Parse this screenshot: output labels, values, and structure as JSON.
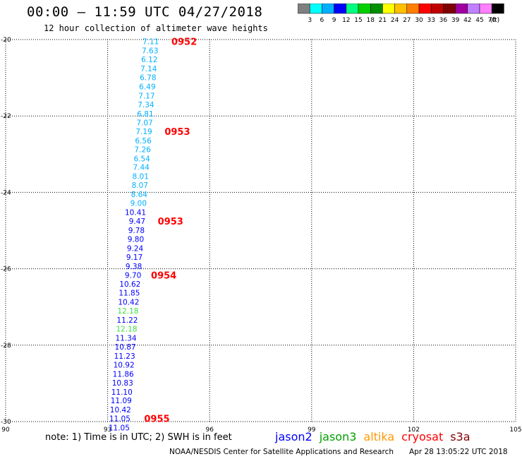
{
  "header": {
    "title": "00:00 – 11:59 UTC 04/27/2018",
    "subtitle": "12 hour collection of altimeter wave heights"
  },
  "colorbar": {
    "colors": [
      "#808080",
      "#00ffff",
      "#00b0ff",
      "#0000ff",
      "#00ff80",
      "#00d000",
      "#009000",
      "#ffff00",
      "#ffc000",
      "#ff8000",
      "#ff0000",
      "#c00000",
      "#800000",
      "#a000a0",
      "#c080ff",
      "#ff80ff",
      "#000000"
    ],
    "labels": [
      "3",
      "6",
      "9",
      "12",
      "15",
      "18",
      "21",
      "24",
      "27",
      "30",
      "33",
      "36",
      "39",
      "42",
      "45",
      "70"
    ],
    "unit": "(ft)"
  },
  "chart_data": {
    "type": "scatter",
    "xlim": [
      90,
      105
    ],
    "ylim": [
      -30,
      -20
    ],
    "xticks": [
      "90",
      "93",
      "96",
      "99",
      "102",
      "105"
    ],
    "yticks": [
      "-20",
      "-22",
      "-24",
      "-26",
      "-28",
      "-30"
    ],
    "grid": true,
    "points": [
      {
        "x": 94.51,
        "y": -20.05,
        "label": "7.11",
        "sat": "jason2",
        "color": "#00b0ff"
      },
      {
        "x": 94.49,
        "y": -20.29,
        "label": "7.63",
        "sat": "jason2",
        "color": "#00b0ff"
      },
      {
        "x": 94.47,
        "y": -20.52,
        "label": "6.12",
        "sat": "jason2",
        "color": "#00b0ff"
      },
      {
        "x": 94.45,
        "y": -20.76,
        "label": "7.14",
        "sat": "jason2",
        "color": "#00b0ff"
      },
      {
        "x": 94.43,
        "y": -20.99,
        "label": "6.78",
        "sat": "jason2",
        "color": "#00b0ff"
      },
      {
        "x": 94.41,
        "y": -21.23,
        "label": "6.49",
        "sat": "jason2",
        "color": "#00b0ff"
      },
      {
        "x": 94.39,
        "y": -21.47,
        "label": "7.17",
        "sat": "jason2",
        "color": "#00b0ff"
      },
      {
        "x": 94.37,
        "y": -21.7,
        "label": "7.34",
        "sat": "jason2",
        "color": "#00b0ff"
      },
      {
        "x": 94.35,
        "y": -21.94,
        "label": "6.81",
        "sat": "jason2",
        "color": "#00b0ff"
      },
      {
        "x": 94.33,
        "y": -22.17,
        "label": "7.07",
        "sat": "jason2",
        "color": "#00b0ff"
      },
      {
        "x": 94.31,
        "y": -22.4,
        "label": "7.19",
        "sat": "jason2",
        "color": "#00b0ff"
      },
      {
        "x": 94.29,
        "y": -22.64,
        "label": "6.56",
        "sat": "jason2",
        "color": "#00b0ff"
      },
      {
        "x": 94.27,
        "y": -22.87,
        "label": "7.26",
        "sat": "jason2",
        "color": "#00b0ff"
      },
      {
        "x": 94.25,
        "y": -23.11,
        "label": "6.54",
        "sat": "jason2",
        "color": "#00b0ff"
      },
      {
        "x": 94.23,
        "y": -23.34,
        "label": "7.44",
        "sat": "jason2",
        "color": "#00b0ff"
      },
      {
        "x": 94.21,
        "y": -23.58,
        "label": "8.01",
        "sat": "jason2",
        "color": "#00b0ff"
      },
      {
        "x": 94.19,
        "y": -23.81,
        "label": "8.07",
        "sat": "jason2",
        "color": "#00b0ff"
      },
      {
        "x": 94.17,
        "y": -24.05,
        "label": "8.64",
        "sat": "jason2",
        "color": "#00b0ff"
      },
      {
        "x": 94.15,
        "y": -24.28,
        "label": "9.00",
        "sat": "jason2",
        "color": "#00b0ff"
      },
      {
        "x": 94.13,
        "y": -24.52,
        "label": "10.41",
        "sat": "jason2",
        "color": "#0000ff"
      },
      {
        "x": 94.11,
        "y": -24.75,
        "label": "9.47",
        "sat": "jason2",
        "color": "#0000ff"
      },
      {
        "x": 94.09,
        "y": -24.99,
        "label": "9.78",
        "sat": "jason2",
        "color": "#0000ff"
      },
      {
        "x": 94.07,
        "y": -25.22,
        "label": "9.80",
        "sat": "jason2",
        "color": "#0000ff"
      },
      {
        "x": 94.05,
        "y": -25.46,
        "label": "9.24",
        "sat": "jason2",
        "color": "#0000ff"
      },
      {
        "x": 94.03,
        "y": -25.69,
        "label": "9.17",
        "sat": "jason2",
        "color": "#0000ff"
      },
      {
        "x": 94.01,
        "y": -25.93,
        "label": "9.38",
        "sat": "jason2",
        "color": "#0000ff"
      },
      {
        "x": 93.99,
        "y": -26.16,
        "label": "9.70",
        "sat": "jason2",
        "color": "#0000ff"
      },
      {
        "x": 93.97,
        "y": -26.4,
        "label": "10.62",
        "sat": "jason2",
        "color": "#0000ff"
      },
      {
        "x": 93.95,
        "y": -26.63,
        "label": "11.85",
        "sat": "jason2",
        "color": "#0000ff"
      },
      {
        "x": 93.93,
        "y": -26.87,
        "label": "10.42",
        "sat": "jason2",
        "color": "#0000ff"
      },
      {
        "x": 93.91,
        "y": -27.1,
        "label": "12.18",
        "sat": "jason2",
        "color": "#40e040"
      },
      {
        "x": 93.89,
        "y": -27.34,
        "label": "11.22",
        "sat": "jason2",
        "color": "#0000ff"
      },
      {
        "x": 93.87,
        "y": -27.57,
        "label": "12.18",
        "sat": "jason2",
        "color": "#40e040"
      },
      {
        "x": 93.85,
        "y": -27.81,
        "label": "11.34",
        "sat": "jason2",
        "color": "#0000ff"
      },
      {
        "x": 93.83,
        "y": -28.04,
        "label": "10.87",
        "sat": "jason2",
        "color": "#0000ff"
      },
      {
        "x": 93.81,
        "y": -28.28,
        "label": "11.23",
        "sat": "jason2",
        "color": "#0000ff"
      },
      {
        "x": 93.79,
        "y": -28.51,
        "label": "10.92",
        "sat": "jason2",
        "color": "#0000ff"
      },
      {
        "x": 93.77,
        "y": -28.75,
        "label": "11.86",
        "sat": "jason2",
        "color": "#0000ff"
      },
      {
        "x": 93.75,
        "y": -28.98,
        "label": "10.83",
        "sat": "jason2",
        "color": "#0000ff"
      },
      {
        "x": 93.73,
        "y": -29.22,
        "label": "11.10",
        "sat": "jason2",
        "color": "#0000ff"
      },
      {
        "x": 93.71,
        "y": -29.45,
        "label": "11.09",
        "sat": "jason2",
        "color": "#0000ff"
      },
      {
        "x": 93.69,
        "y": -29.69,
        "label": "10.42",
        "sat": "jason2",
        "color": "#0000ff"
      },
      {
        "x": 93.67,
        "y": -29.92,
        "label": "11.05",
        "sat": "jason2",
        "color": "#0000ff"
      },
      {
        "x": 93.65,
        "y": -30.16,
        "label": "11.05",
        "sat": "jason2",
        "color": "#0000ff"
      }
    ],
    "time_labels": [
      {
        "x": 95.25,
        "y": -20.05,
        "label": "0952"
      },
      {
        "x": 95.05,
        "y": -22.4,
        "label": "0953"
      },
      {
        "x": 94.85,
        "y": -24.75,
        "label": "0953"
      },
      {
        "x": 94.65,
        "y": -26.16,
        "label": "0954"
      },
      {
        "x": 94.45,
        "y": -29.92,
        "label": "0955"
      }
    ]
  },
  "footer": {
    "note": "note: 1) Time is in UTC; 2) SWH is in feet",
    "source": "NOAA/NESDIS Center for Satellite Applications and Research",
    "timestamp": "Apr 28 13:05:22 UTC 2018"
  },
  "legend": [
    {
      "name": "jason2",
      "color": "#0000ff"
    },
    {
      "name": "jason3",
      "color": "#00a000"
    },
    {
      "name": "altika",
      "color": "#ff9900"
    },
    {
      "name": "cryosat",
      "color": "#ff0000"
    },
    {
      "name": "s3a",
      "color": "#800000"
    }
  ]
}
